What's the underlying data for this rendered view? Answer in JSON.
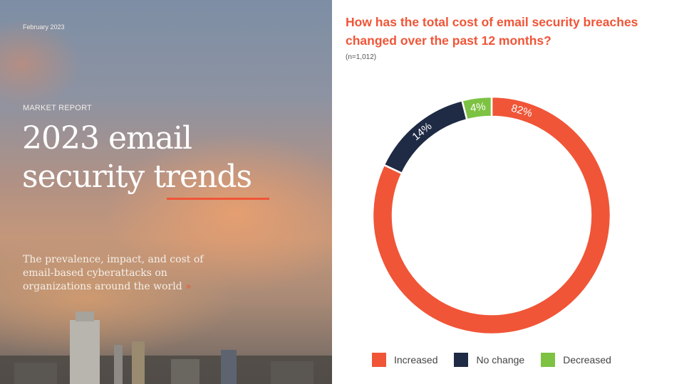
{
  "cover": {
    "date": "February 2023",
    "kicker": "MARKET REPORT",
    "title_line1": "2023 email",
    "title_line2a": "security ",
    "title_line2b": "trends",
    "subtitle": "The prevalence, impact, and cost of email-based cyberattacks on organizations around the world",
    "arrow": "»"
  },
  "chart_data": {
    "type": "pie",
    "variant": "donut",
    "title": "How has the total cost of email security breaches changed over the past 12 months?",
    "note": "(n=1,012)",
    "categories": [
      "Increased",
      "No change",
      "Decreased"
    ],
    "values": [
      82,
      14,
      4
    ],
    "labels": [
      "82%",
      "14%",
      "4%"
    ],
    "colors": [
      "#F05537",
      "#1F2A44",
      "#7DC242"
    ],
    "legend_position": "bottom"
  }
}
